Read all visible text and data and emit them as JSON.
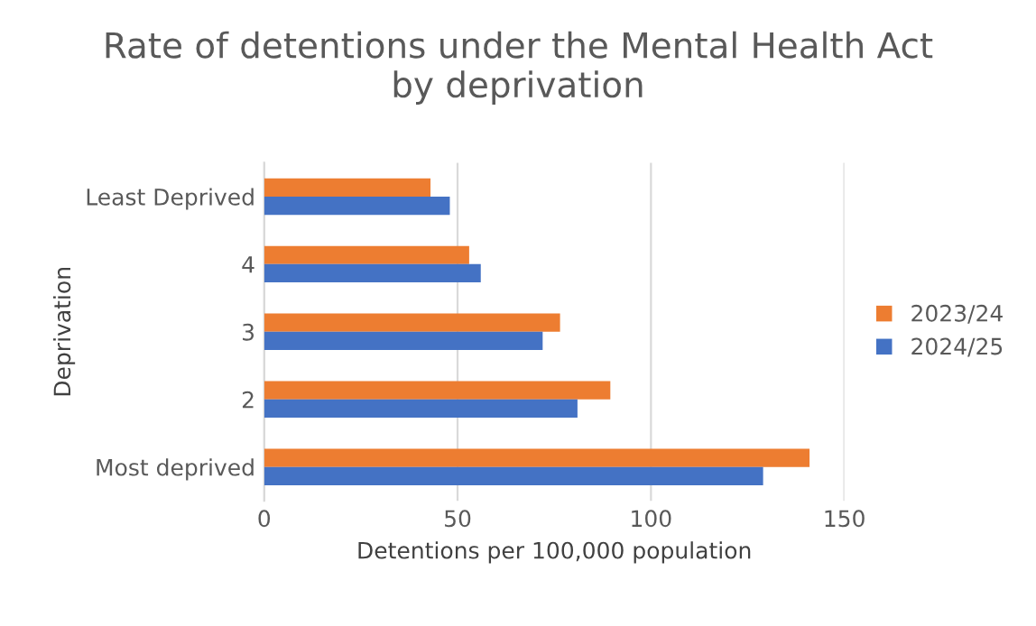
{
  "chart_data": {
    "type": "bar",
    "orientation": "horizontal",
    "title": "Rate of detentions under the Mental Health Act\nby deprivation",
    "xlabel": "Detentions per 100,000 population",
    "ylabel": "Deprivation",
    "categories": [
      "Least Deprived",
      "4",
      "3",
      "2",
      "Most deprived"
    ],
    "series": [
      {
        "name": "2023/24",
        "color": "#ed7d31",
        "values": [
          43,
          53,
          76.5,
          89.5,
          141
        ]
      },
      {
        "name": "2024/25",
        "color": "#4472c4",
        "values": [
          48,
          56,
          72,
          81,
          129
        ]
      }
    ],
    "xlim": [
      0,
      150
    ],
    "xticks": [
      0,
      50,
      100,
      150
    ],
    "grid": "x",
    "legend": "right"
  }
}
